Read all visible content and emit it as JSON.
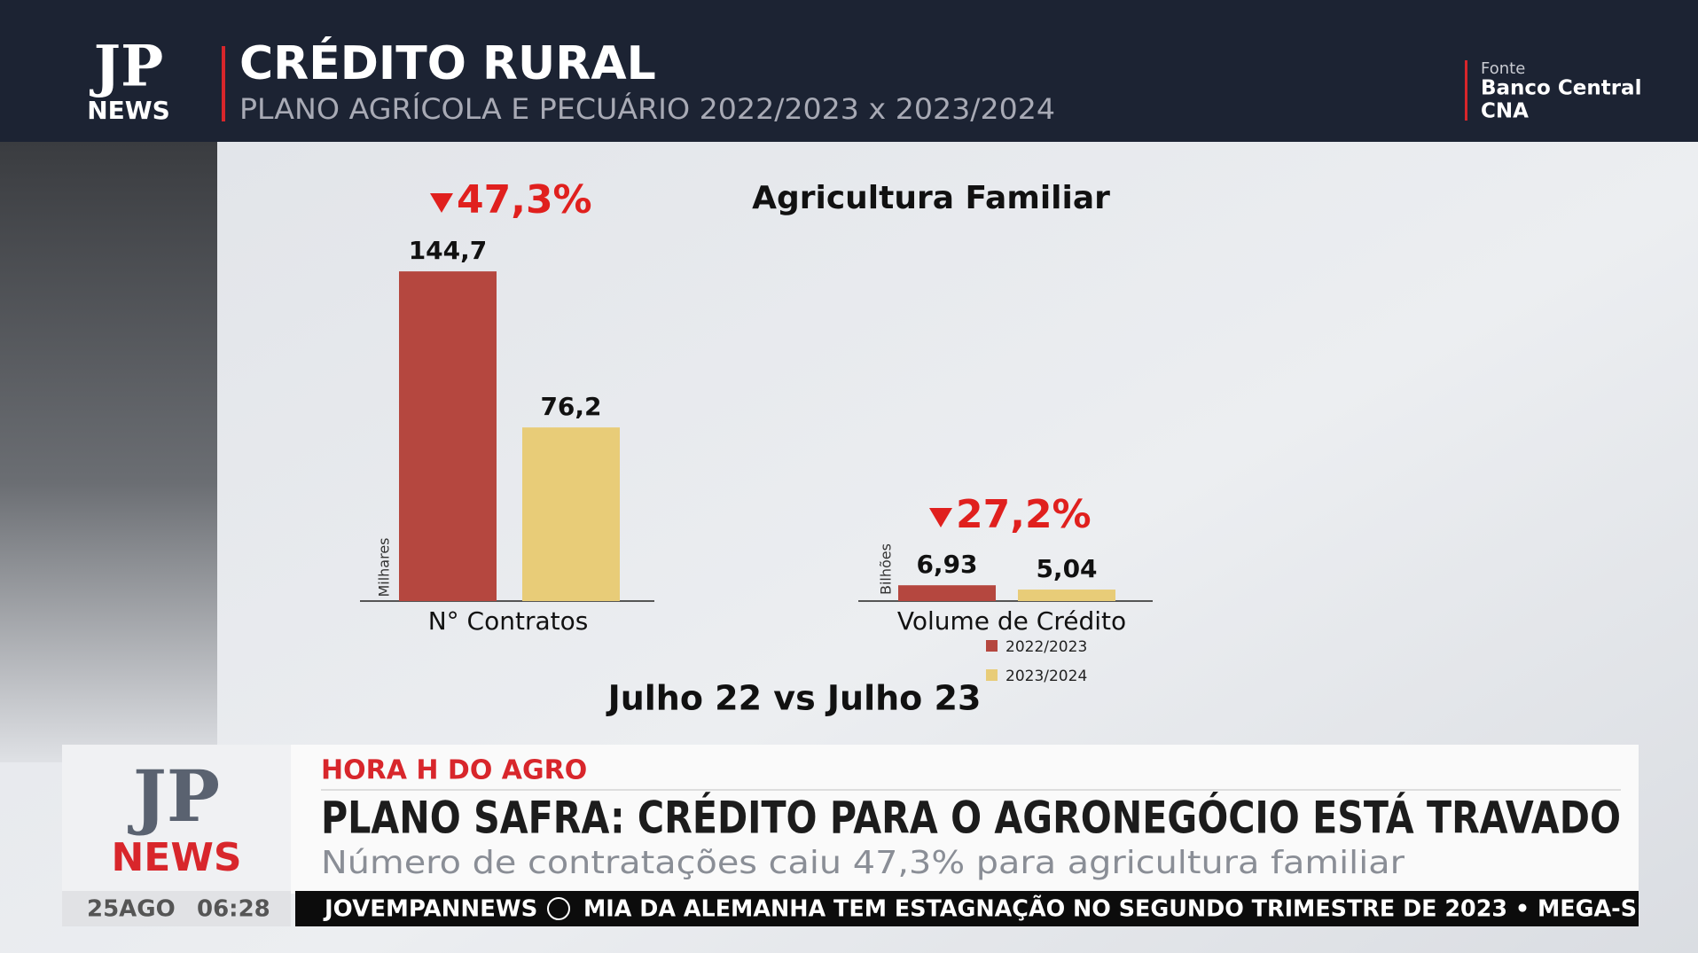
{
  "header": {
    "logo": "JP",
    "logo_sub": "NEWS",
    "title": "CRÉDITO RURAL",
    "subtitle": "PLANO AGRÍCOLA E PECUÁRIO 2022/2023 x 2023/2024",
    "source_label": "Fonte",
    "sources": [
      "Banco Central",
      "CNA"
    ]
  },
  "chart_title": "Agricultura Familiar",
  "period": "Julho 22 vs Julho 23",
  "chart_data": [
    {
      "type": "bar",
      "categories": [
        "N° Contratos"
      ],
      "ylabel": "Milhares",
      "annotation": "47,3%",
      "series": [
        {
          "color": "#b5473f",
          "values": [
            144.7
          ],
          "value_labels": [
            "144,7"
          ]
        },
        {
          "color": "#e8cc78",
          "values": [
            76.2
          ],
          "value_labels": [
            "76,2"
          ]
        }
      ]
    },
    {
      "type": "bar",
      "categories": [
        "Volume de Crédito"
      ],
      "ylabel": "Bilhões",
      "annotation": "27,2%",
      "series": [
        {
          "name": "2022/2023",
          "color": "#b5473f",
          "values": [
            6.93
          ],
          "value_labels": [
            "6,93"
          ]
        },
        {
          "name": "2023/2024",
          "color": "#e8cc78",
          "values": [
            5.04
          ],
          "value_labels": [
            "5,04"
          ]
        }
      ]
    }
  ],
  "lower_third": {
    "logo": "JP",
    "logo_sub": "NEWS",
    "program": "HORA H DO AGRO",
    "headline": "PLANO SAFRA: CRÉDITO PARA O AGRONEGÓCIO ESTÁ TRAVADO",
    "subline": "Número de contratações caiu 47,3% para agricultura familiar",
    "date": "25AGO",
    "time": "06:28",
    "ticker_brand": "JOVEMPANNEWS",
    "ticker_text": "MIA DA ALEMANHA TEM ESTAGNAÇÃO NO SEGUNDO TRIMESTRE DE 2023 • MEGA-S"
  }
}
